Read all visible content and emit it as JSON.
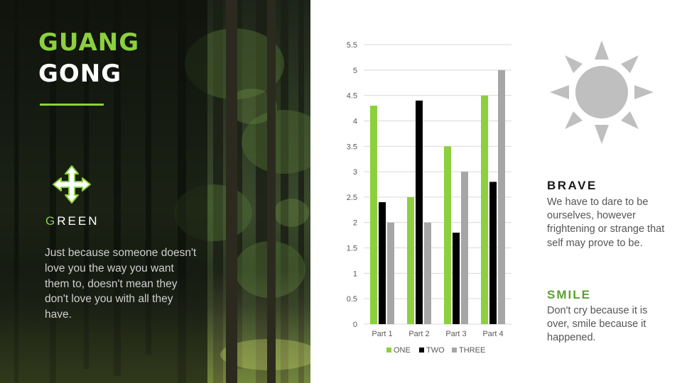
{
  "slide": {
    "title_line1": "GUANG",
    "title_line2": "GONG",
    "section_label_first": "G",
    "section_label_rest": "REEN",
    "quote": "Just because someone doesn't love you the way you want them to, doesn't mean they don't love you with all they have.",
    "brave_heading": "BRAVE",
    "brave_text": "We have to dare to be ourselves, however frightening or strange that self may prove to be.",
    "smile_heading": "SMILE",
    "smile_text": "Don't cry because it is over, smile because it happened."
  },
  "icons": {
    "move": "move-arrows-icon",
    "sun": "sun-icon"
  },
  "colors": {
    "accent_green": "#8cd03e",
    "series_one": "#8cd03e",
    "series_two": "#000000",
    "series_three": "#a6a6a6"
  },
  "chart_data": {
    "type": "bar",
    "categories": [
      "Part 1",
      "Part 2",
      "Part 3",
      "Part 4"
    ],
    "series": [
      {
        "name": "ONE",
        "values": [
          4.3,
          2.5,
          3.5,
          4.5
        ]
      },
      {
        "name": "TWO",
        "values": [
          2.4,
          4.4,
          1.8,
          2.8
        ]
      },
      {
        "name": "THREE",
        "values": [
          2.0,
          2.0,
          3.0,
          5.0
        ]
      }
    ],
    "yticks": [
      "0",
      "0.5",
      "1",
      "1.5",
      "2",
      "2.5",
      "3",
      "3.5",
      "4",
      "4.5",
      "5",
      "5.5"
    ],
    "ylim": [
      0,
      5.5
    ],
    "grid": true,
    "legend": "bottom"
  }
}
